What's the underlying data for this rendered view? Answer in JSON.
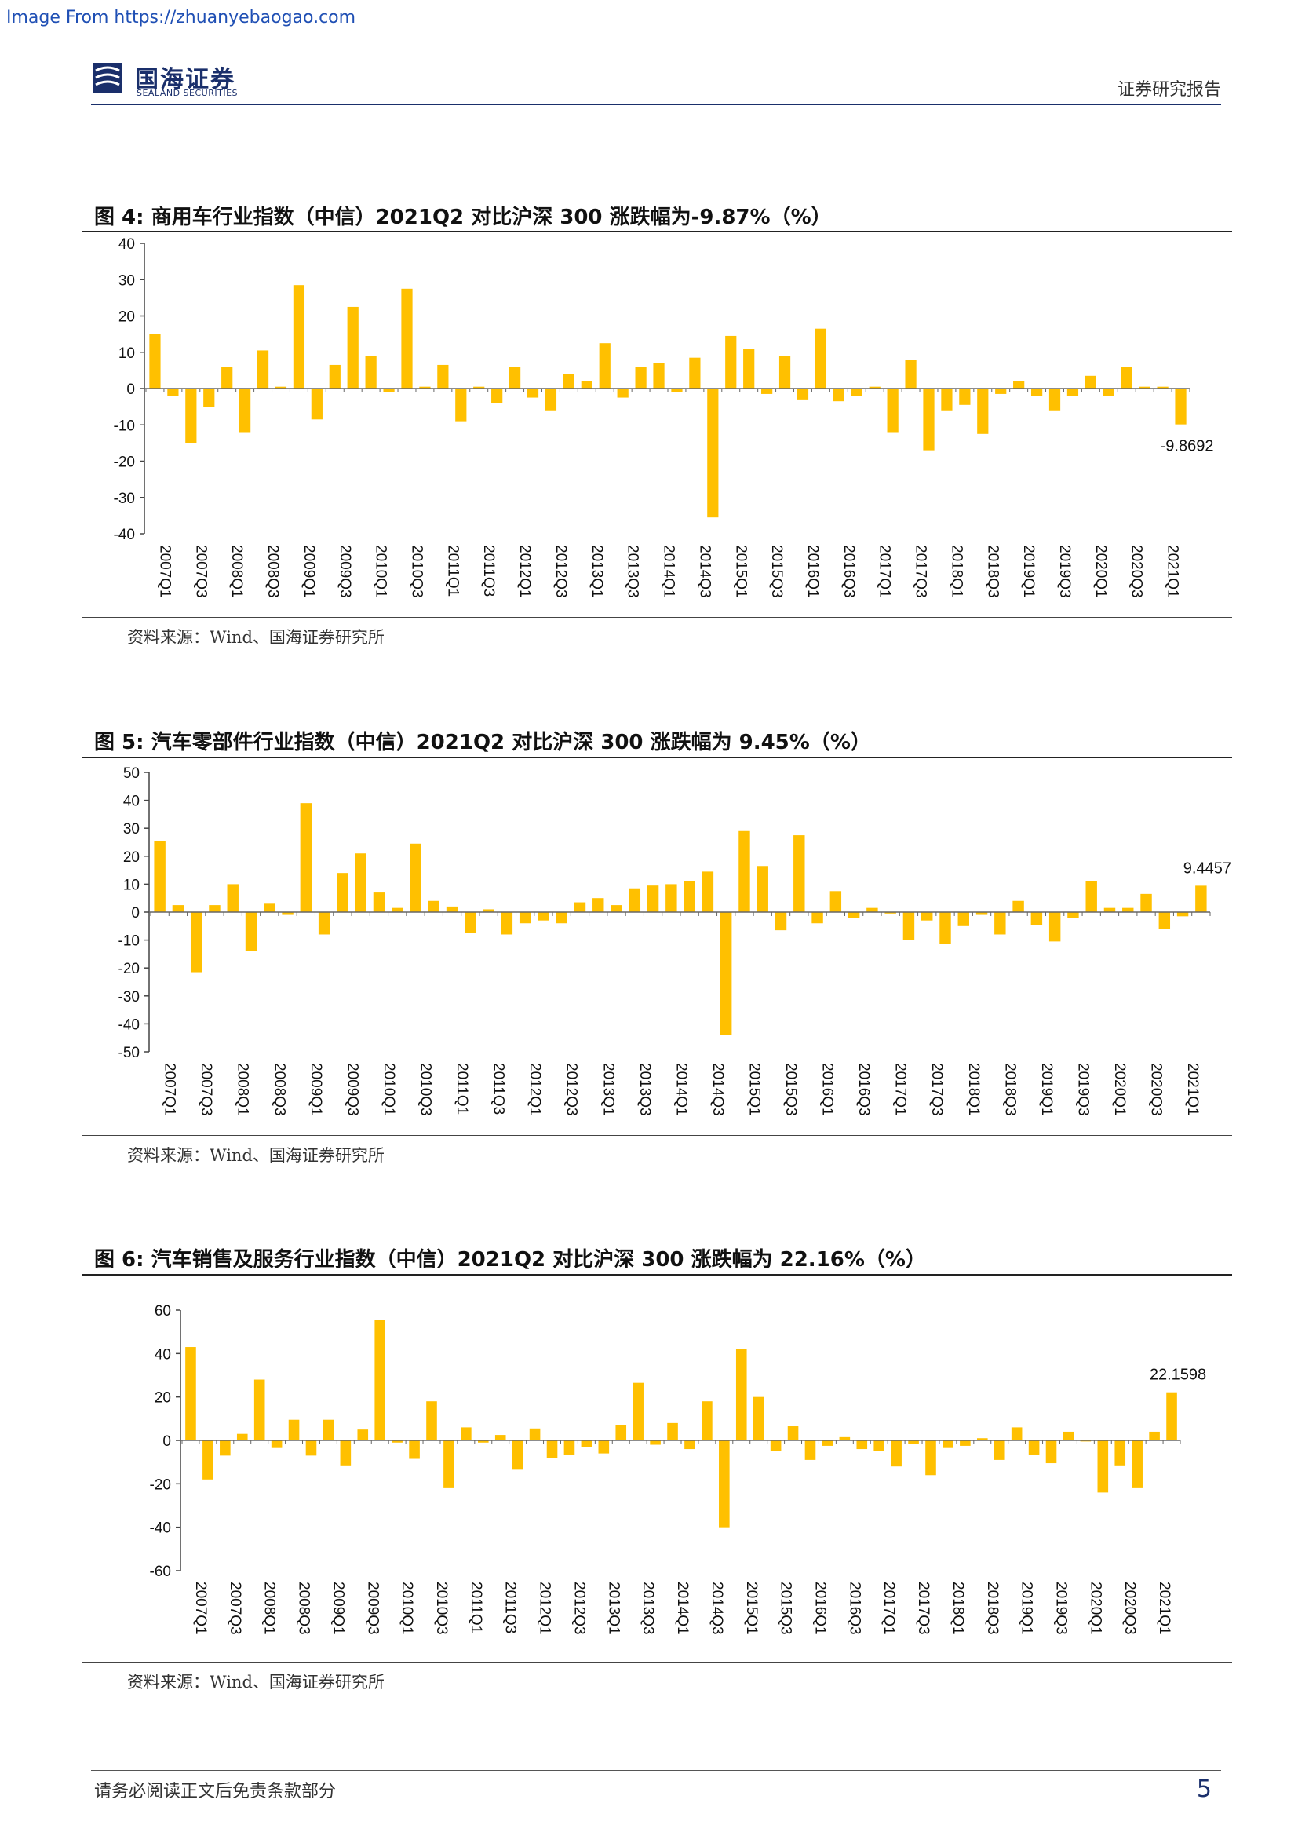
{
  "watermark": "Image From https://zhuanyebaogao.com",
  "header": {
    "logo_cn": "国海证券",
    "logo_en": "SEALAND SECURITIES",
    "report_type": "证券研究报告"
  },
  "footer": {
    "disclaimer": "请务必阅读正文后免责条款部分",
    "page_number": "5"
  },
  "colors": {
    "bar": "#FFC000",
    "brand": "#1a2f6b"
  },
  "chart_data": [
    {
      "type": "bar",
      "title": "图 4:  商用车行业指数（中信）2021Q2 对比沪深 300 涨跌幅为-9.87%（%）",
      "source": "资料来源：Wind、国海证券研究所",
      "ylim": [
        -40,
        40
      ],
      "yticks": [
        -40,
        -30,
        -20,
        -10,
        0,
        10,
        20,
        30,
        40
      ],
      "categories": [
        "2007Q1",
        "2007Q2",
        "2007Q3",
        "2007Q4",
        "2008Q1",
        "2008Q2",
        "2008Q3",
        "2008Q4",
        "2009Q1",
        "2009Q2",
        "2009Q3",
        "2009Q4",
        "2010Q1",
        "2010Q2",
        "2010Q3",
        "2010Q4",
        "2011Q1",
        "2011Q2",
        "2011Q3",
        "2011Q4",
        "2012Q1",
        "2012Q2",
        "2012Q3",
        "2012Q4",
        "2013Q1",
        "2013Q2",
        "2013Q3",
        "2013Q4",
        "2014Q1",
        "2014Q2",
        "2014Q3",
        "2014Q4",
        "2015Q1",
        "2015Q2",
        "2015Q3",
        "2015Q4",
        "2016Q1",
        "2016Q2",
        "2016Q3",
        "2016Q4",
        "2017Q1",
        "2017Q2",
        "2017Q3",
        "2017Q4",
        "2018Q1",
        "2018Q2",
        "2018Q3",
        "2018Q4",
        "2019Q1",
        "2019Q2",
        "2019Q3",
        "2019Q4",
        "2020Q1",
        "2020Q2",
        "2020Q3",
        "2020Q4",
        "2021Q1",
        "2021Q2"
      ],
      "tick_labels": [
        "2007Q1",
        "2007Q3",
        "2008Q1",
        "2008Q3",
        "2009Q1",
        "2009Q3",
        "2010Q1",
        "2010Q3",
        "2011Q1",
        "2011Q3",
        "2012Q1",
        "2012Q3",
        "2013Q1",
        "2013Q3",
        "2014Q1",
        "2014Q3",
        "2015Q1",
        "2015Q3",
        "2016Q1",
        "2016Q3",
        "2017Q1",
        "2017Q3",
        "2018Q1",
        "2018Q3",
        "2019Q1",
        "2019Q3",
        "2020Q1",
        "2020Q3",
        "2021Q1"
      ],
      "values": [
        15,
        -2,
        -15,
        -5,
        6,
        -12,
        10.5,
        0.5,
        28.5,
        -8.5,
        6.5,
        22.5,
        9,
        -1,
        27.5,
        0.5,
        6.5,
        -9,
        0.5,
        -4,
        6,
        -2.5,
        -6,
        4,
        2,
        12.5,
        -2.5,
        6,
        7,
        -1,
        8.5,
        -35.5,
        14.5,
        11,
        -1.5,
        9,
        -3,
        16.5,
        -3.5,
        -2,
        0.5,
        -12,
        8,
        -17,
        -6,
        -4.5,
        -12.5,
        -1.5,
        2,
        -2,
        -6,
        -2,
        3.5,
        -2,
        6,
        0.5,
        0.5,
        -9.8692
      ],
      "last_label": "-9.8692"
    },
    {
      "type": "bar",
      "title": "图 5:  汽车零部件行业指数（中信）2021Q2 对比沪深 300 涨跌幅为 9.45%（%）",
      "source": "资料来源：Wind、国海证券研究所",
      "ylim": [
        -50,
        50
      ],
      "yticks": [
        -50,
        -40,
        -30,
        -20,
        -10,
        0,
        10,
        20,
        30,
        40,
        50
      ],
      "categories": [
        "2007Q1",
        "2007Q2",
        "2007Q3",
        "2007Q4",
        "2008Q1",
        "2008Q2",
        "2008Q3",
        "2008Q4",
        "2009Q1",
        "2009Q2",
        "2009Q3",
        "2009Q4",
        "2010Q1",
        "2010Q2",
        "2010Q3",
        "2010Q4",
        "2011Q1",
        "2011Q2",
        "2011Q3",
        "2011Q4",
        "2012Q1",
        "2012Q2",
        "2012Q3",
        "2012Q4",
        "2013Q1",
        "2013Q2",
        "2013Q3",
        "2013Q4",
        "2014Q1",
        "2014Q2",
        "2014Q3",
        "2014Q4",
        "2015Q1",
        "2015Q2",
        "2015Q3",
        "2015Q4",
        "2016Q1",
        "2016Q2",
        "2016Q3",
        "2016Q4",
        "2017Q1",
        "2017Q2",
        "2017Q3",
        "2017Q4",
        "2018Q1",
        "2018Q2",
        "2018Q3",
        "2018Q4",
        "2019Q1",
        "2019Q2",
        "2019Q3",
        "2019Q4",
        "2020Q1",
        "2020Q2",
        "2020Q3",
        "2020Q4",
        "2021Q1",
        "2021Q2"
      ],
      "tick_labels": [
        "2007Q1",
        "2007Q3",
        "2008Q1",
        "2008Q3",
        "2009Q1",
        "2009Q3",
        "2010Q1",
        "2010Q3",
        "2011Q1",
        "2011Q3",
        "2012Q1",
        "2012Q3",
        "2013Q1",
        "2013Q3",
        "2014Q1",
        "2014Q3",
        "2015Q1",
        "2015Q3",
        "2016Q1",
        "2016Q3",
        "2017Q1",
        "2017Q3",
        "2018Q1",
        "2018Q3",
        "2019Q1",
        "2019Q3",
        "2020Q1",
        "2020Q3",
        "2021Q1"
      ],
      "values": [
        25.5,
        2.5,
        -21.5,
        2.5,
        10,
        -14,
        3,
        -1,
        39,
        -8,
        14,
        21,
        7,
        1.5,
        24.5,
        4,
        2,
        -7.5,
        1,
        -8,
        -4,
        -3,
        -4,
        3.5,
        5,
        2.5,
        8.5,
        9.5,
        10,
        11,
        14.5,
        -44,
        29,
        16.5,
        -6.5,
        27.5,
        -4,
        7.5,
        -2,
        1.5,
        -0.5,
        -10,
        -3,
        -11.5,
        -5,
        -1,
        -8,
        4,
        -4.5,
        -10.5,
        -2,
        11,
        1.5,
        1.5,
        6.5,
        -6,
        -1.5,
        9.4457
      ],
      "last_label": "9.4457"
    },
    {
      "type": "bar",
      "title": "图 6:  汽车销售及服务行业指数（中信）2021Q2 对比沪深 300 涨跌幅为 22.16%（%）",
      "source": "资料来源：Wind、国海证券研究所",
      "ylim": [
        -60,
        60
      ],
      "yticks": [
        -60,
        -40,
        -20,
        0,
        20,
        40,
        60
      ],
      "categories": [
        "2007Q1",
        "2007Q2",
        "2007Q3",
        "2007Q4",
        "2008Q1",
        "2008Q2",
        "2008Q3",
        "2008Q4",
        "2009Q1",
        "2009Q2",
        "2009Q3",
        "2009Q4",
        "2010Q1",
        "2010Q2",
        "2010Q3",
        "2010Q4",
        "2011Q1",
        "2011Q2",
        "2011Q3",
        "2011Q4",
        "2012Q1",
        "2012Q2",
        "2012Q3",
        "2012Q4",
        "2013Q1",
        "2013Q2",
        "2013Q3",
        "2013Q4",
        "2014Q1",
        "2014Q2",
        "2014Q3",
        "2014Q4",
        "2015Q1",
        "2015Q2",
        "2015Q3",
        "2015Q4",
        "2016Q1",
        "2016Q2",
        "2016Q3",
        "2016Q4",
        "2017Q1",
        "2017Q2",
        "2017Q3",
        "2017Q4",
        "2018Q1",
        "2018Q2",
        "2018Q3",
        "2018Q4",
        "2019Q1",
        "2019Q2",
        "2019Q3",
        "2019Q4",
        "2020Q1",
        "2020Q2",
        "2020Q3",
        "2020Q4",
        "2021Q1",
        "2021Q2"
      ],
      "tick_labels": [
        "2007Q1",
        "2007Q3",
        "2008Q1",
        "2008Q3",
        "2009Q1",
        "2009Q3",
        "2010Q1",
        "2010Q3",
        "2011Q1",
        "2011Q3",
        "2012Q1",
        "2012Q3",
        "2013Q1",
        "2013Q3",
        "2014Q1",
        "2014Q3",
        "2015Q1",
        "2015Q3",
        "2016Q1",
        "2016Q3",
        "2017Q1",
        "2017Q3",
        "2018Q1",
        "2018Q3",
        "2019Q1",
        "2019Q3",
        "2020Q1",
        "2020Q3",
        "2021Q1"
      ],
      "values": [
        43,
        -18,
        -7,
        3,
        28,
        -3.5,
        9.5,
        -7,
        9.5,
        -11.5,
        5,
        55.5,
        -1,
        -8.5,
        18,
        -22,
        6,
        -1,
        2.5,
        -13.5,
        5.5,
        -8,
        -6.5,
        -3,
        -6,
        7,
        26.5,
        -2,
        8,
        -4,
        18,
        -40,
        42,
        20,
        -5,
        6.5,
        -9,
        -2.5,
        1.5,
        -4,
        -5,
        -12,
        -1.5,
        -16,
        -3.5,
        -2.5,
        1,
        -9,
        6,
        -6.5,
        -10.5,
        4,
        -0.5,
        -24,
        -11.5,
        -22,
        4,
        22.1598
      ],
      "last_label": "22.1598"
    }
  ]
}
